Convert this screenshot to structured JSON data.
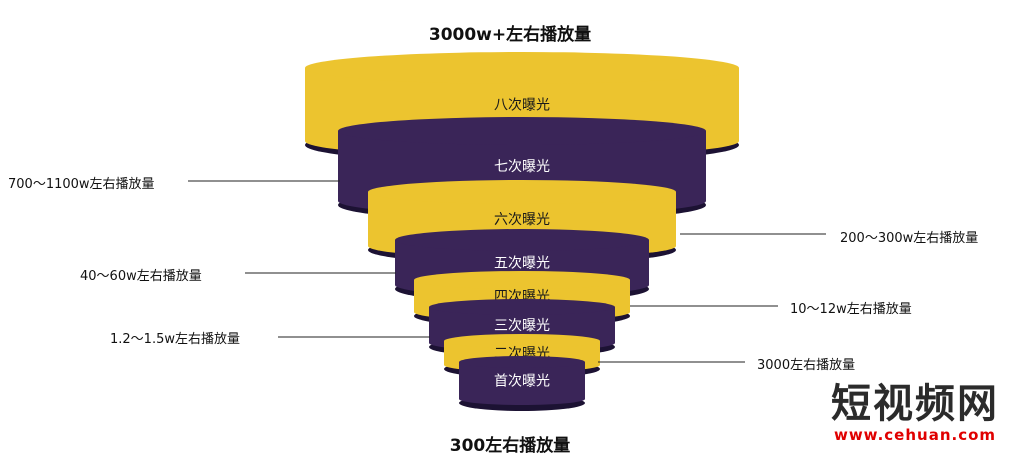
{
  "title_top": "3000w+左右播放量",
  "title_bottom": "300左右播放量",
  "colors": {
    "gold": "#ecc42f",
    "purple": "#3a2558",
    "dark": "#1c1233",
    "line": "#222222"
  },
  "levels": [
    {
      "label": "八次曝光",
      "color": "gold"
    },
    {
      "label": "七次曝光",
      "color": "purple"
    },
    {
      "label": "六次曝光",
      "color": "gold"
    },
    {
      "label": "五次曝光",
      "color": "purple"
    },
    {
      "label": "四次曝光",
      "color": "gold"
    },
    {
      "label": "三次曝光",
      "color": "purple"
    },
    {
      "label": "二次曝光",
      "color": "gold"
    },
    {
      "label": "首次曝光",
      "color": "purple"
    }
  ],
  "annotations": [
    {
      "text": "700～1100w左右播放量",
      "side": "left",
      "level": 1
    },
    {
      "text": "200～300w左右播放量",
      "side": "right",
      "level": 2
    },
    {
      "text": "40～60w左右播放量",
      "side": "left",
      "level": 3
    },
    {
      "text": "10～12w左右播放量",
      "side": "right",
      "level": 4
    },
    {
      "text": "1.2～1.5w左右播放量",
      "side": "left",
      "level": 5
    },
    {
      "text": "3000左右播放量",
      "side": "right",
      "level": 6
    }
  ],
  "watermark": {
    "main": "短视频网",
    "url": "www.cehuan.com"
  }
}
